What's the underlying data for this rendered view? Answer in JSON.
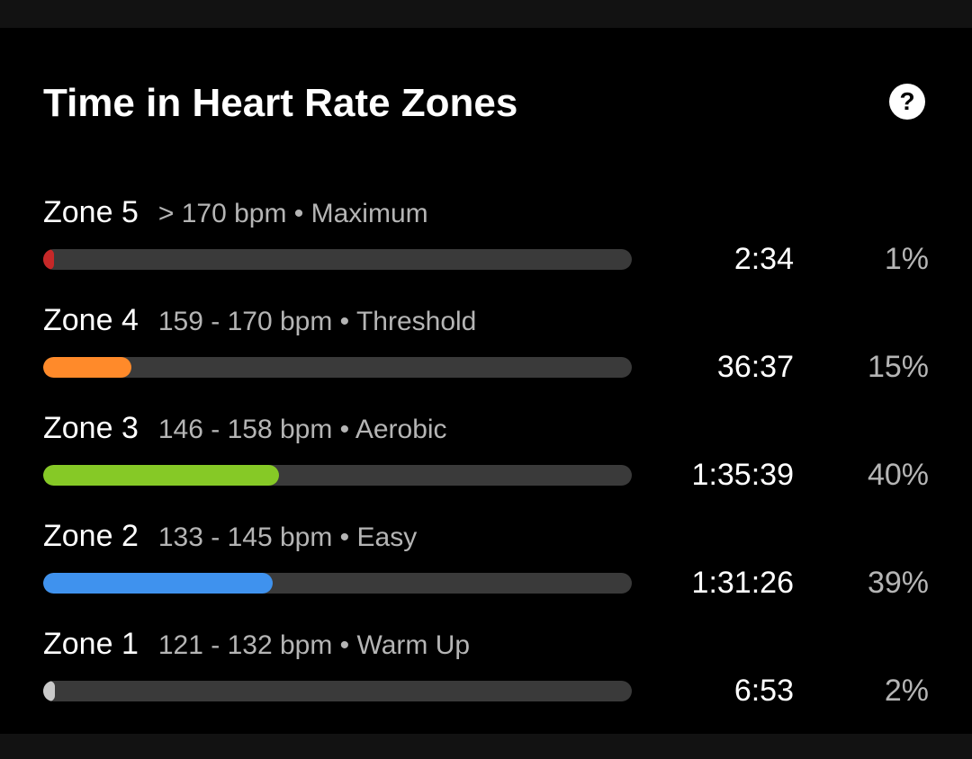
{
  "title": "Time in Heart Rate Zones",
  "help_icon": "?",
  "zones": [
    {
      "name": "Zone 5",
      "detail": "> 170 bpm • Maximum",
      "time": "2:34",
      "percent_label": "1%",
      "fraction": 0.01,
      "color": "#c62828"
    },
    {
      "name": "Zone 4",
      "detail": "159 - 170 bpm • Threshold",
      "time": "36:37",
      "percent_label": "15%",
      "fraction": 0.15,
      "color": "#ff8a2a"
    },
    {
      "name": "Zone 3",
      "detail": "146 - 158 bpm • Aerobic",
      "time": "1:35:39",
      "percent_label": "40%",
      "fraction": 0.4,
      "color": "#86c926"
    },
    {
      "name": "Zone 2",
      "detail": "133 - 145 bpm • Easy",
      "time": "1:31:26",
      "percent_label": "39%",
      "fraction": 0.39,
      "color": "#3f92ee"
    },
    {
      "name": "Zone 1",
      "detail": "121 - 132 bpm • Warm Up",
      "time": "6:53",
      "percent_label": "2%",
      "fraction": 0.02,
      "color": "#c9c9c9"
    }
  ]
}
